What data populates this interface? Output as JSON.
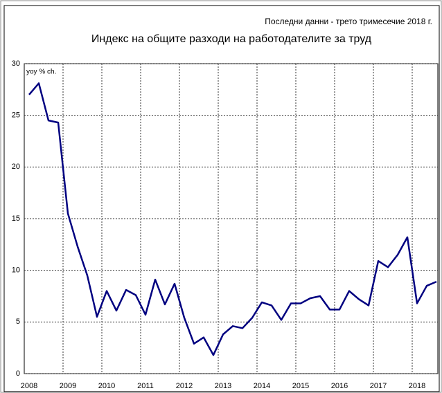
{
  "chart_data": {
    "type": "line",
    "title": "Индекс на общите разходи на работодателите за труд",
    "subtitle": "Последни данни - трето тримесечие 2018 г.",
    "y_label": "yoy % ch.",
    "categories": [
      "2008",
      null,
      null,
      null,
      "2009",
      null,
      null,
      null,
      "2010",
      null,
      null,
      null,
      "2011",
      null,
      null,
      null,
      "2012",
      null,
      null,
      null,
      "2013",
      null,
      null,
      null,
      "2014",
      null,
      null,
      null,
      "2015",
      null,
      null,
      null,
      "2016",
      null,
      null,
      null,
      "2017",
      null,
      null,
      null,
      "2018",
      null,
      null
    ],
    "values": [
      27.0,
      28.1,
      24.5,
      24.3,
      15.5,
      12.3,
      9.5,
      5.5,
      8.0,
      6.1,
      8.1,
      7.6,
      5.7,
      9.1,
      6.7,
      8.7,
      5.4,
      2.9,
      3.5,
      1.8,
      3.8,
      4.6,
      4.4,
      5.4,
      6.9,
      6.6,
      5.2,
      6.8,
      6.8,
      7.3,
      7.5,
      6.2,
      6.2,
      8.0,
      7.2,
      6.6,
      10.9,
      10.3,
      11.5,
      13.2,
      6.8,
      8.5,
      8.9
    ],
    "color": "#000080",
    "ylim": [
      0,
      30
    ],
    "yticks": [
      0,
      5,
      10,
      15,
      20,
      25,
      30
    ],
    "grid": true
  }
}
